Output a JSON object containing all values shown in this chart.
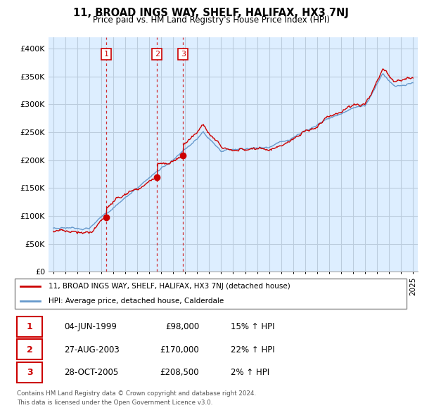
{
  "title": "11, BROAD INGS WAY, SHELF, HALIFAX, HX3 7NJ",
  "subtitle": "Price paid vs. HM Land Registry's House Price Index (HPI)",
  "legend_label_red": "11, BROAD INGS WAY, SHELF, HALIFAX, HX3 7NJ (detached house)",
  "legend_label_blue": "HPI: Average price, detached house, Calderdale",
  "footer1": "Contains HM Land Registry data © Crown copyright and database right 2024.",
  "footer2": "This data is licensed under the Open Government Licence v3.0.",
  "transactions": [
    {
      "num": "1",
      "date": "04-JUN-1999",
      "price": "£98,000",
      "change": "15% ↑ HPI"
    },
    {
      "num": "2",
      "date": "27-AUG-2003",
      "price": "£170,000",
      "change": "22% ↑ HPI"
    },
    {
      "num": "3",
      "date": "28-OCT-2005",
      "price": "£208,500",
      "change": "2% ↑ HPI"
    }
  ],
  "transaction_years": [
    1999.43,
    2003.65,
    2005.82
  ],
  "transaction_prices": [
    98000,
    170000,
    208500
  ],
  "ylim": [
    0,
    420000
  ],
  "yticks": [
    0,
    50000,
    100000,
    150000,
    200000,
    250000,
    300000,
    350000,
    400000
  ],
  "color_red": "#cc0000",
  "color_blue": "#6699cc",
  "bg_fill": "#ddeeff",
  "background_color": "#ffffff",
  "grid_color": "#bbccdd"
}
